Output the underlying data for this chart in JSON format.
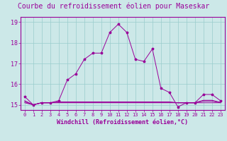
{
  "title": "Courbe du refroidissement éolien pour Maseskar",
  "xlabel": "Windchill (Refroidissement éolien,°C)",
  "background_color": "#cce8e8",
  "grid_color": "#99cccc",
  "line_color": "#990099",
  "x": [
    0,
    1,
    2,
    3,
    4,
    5,
    6,
    7,
    8,
    9,
    10,
    11,
    12,
    13,
    14,
    15,
    16,
    17,
    18,
    19,
    20,
    21,
    22,
    23
  ],
  "y_main": [
    15.4,
    15.0,
    15.1,
    15.1,
    15.2,
    16.2,
    16.5,
    17.2,
    17.5,
    17.5,
    18.5,
    18.9,
    18.5,
    17.2,
    17.1,
    17.7,
    15.8,
    15.6,
    14.9,
    15.1,
    15.1,
    15.5,
    15.5,
    15.2
  ],
  "y_flat1": [
    15.1,
    15.0,
    15.1,
    15.1,
    15.1,
    15.1,
    15.1,
    15.1,
    15.1,
    15.1,
    15.1,
    15.1,
    15.1,
    15.1,
    15.1,
    15.1,
    15.1,
    15.1,
    15.1,
    15.1,
    15.1,
    15.1,
    15.1,
    15.1
  ],
  "y_flat2": [
    15.15,
    15.0,
    15.1,
    15.1,
    15.12,
    15.12,
    15.12,
    15.12,
    15.12,
    15.12,
    15.12,
    15.12,
    15.12,
    15.12,
    15.12,
    15.12,
    15.12,
    15.12,
    15.1,
    15.1,
    15.1,
    15.18,
    15.18,
    15.1
  ],
  "y_flat3": [
    15.2,
    15.0,
    15.1,
    15.1,
    15.14,
    15.14,
    15.14,
    15.14,
    15.14,
    15.14,
    15.14,
    15.14,
    15.14,
    15.14,
    15.14,
    15.14,
    15.14,
    15.14,
    15.1,
    15.1,
    15.1,
    15.22,
    15.22,
    15.12
  ],
  "ylim": [
    14.75,
    19.25
  ],
  "yticks": [
    15,
    16,
    17,
    18,
    19
  ],
  "xticks": [
    0,
    1,
    2,
    3,
    4,
    5,
    6,
    7,
    8,
    9,
    10,
    11,
    12,
    13,
    14,
    15,
    16,
    17,
    18,
    19,
    20,
    21,
    22,
    23
  ],
  "title_fontsize": 7,
  "tick_fontsize": 5,
  "xlabel_fontsize": 6
}
